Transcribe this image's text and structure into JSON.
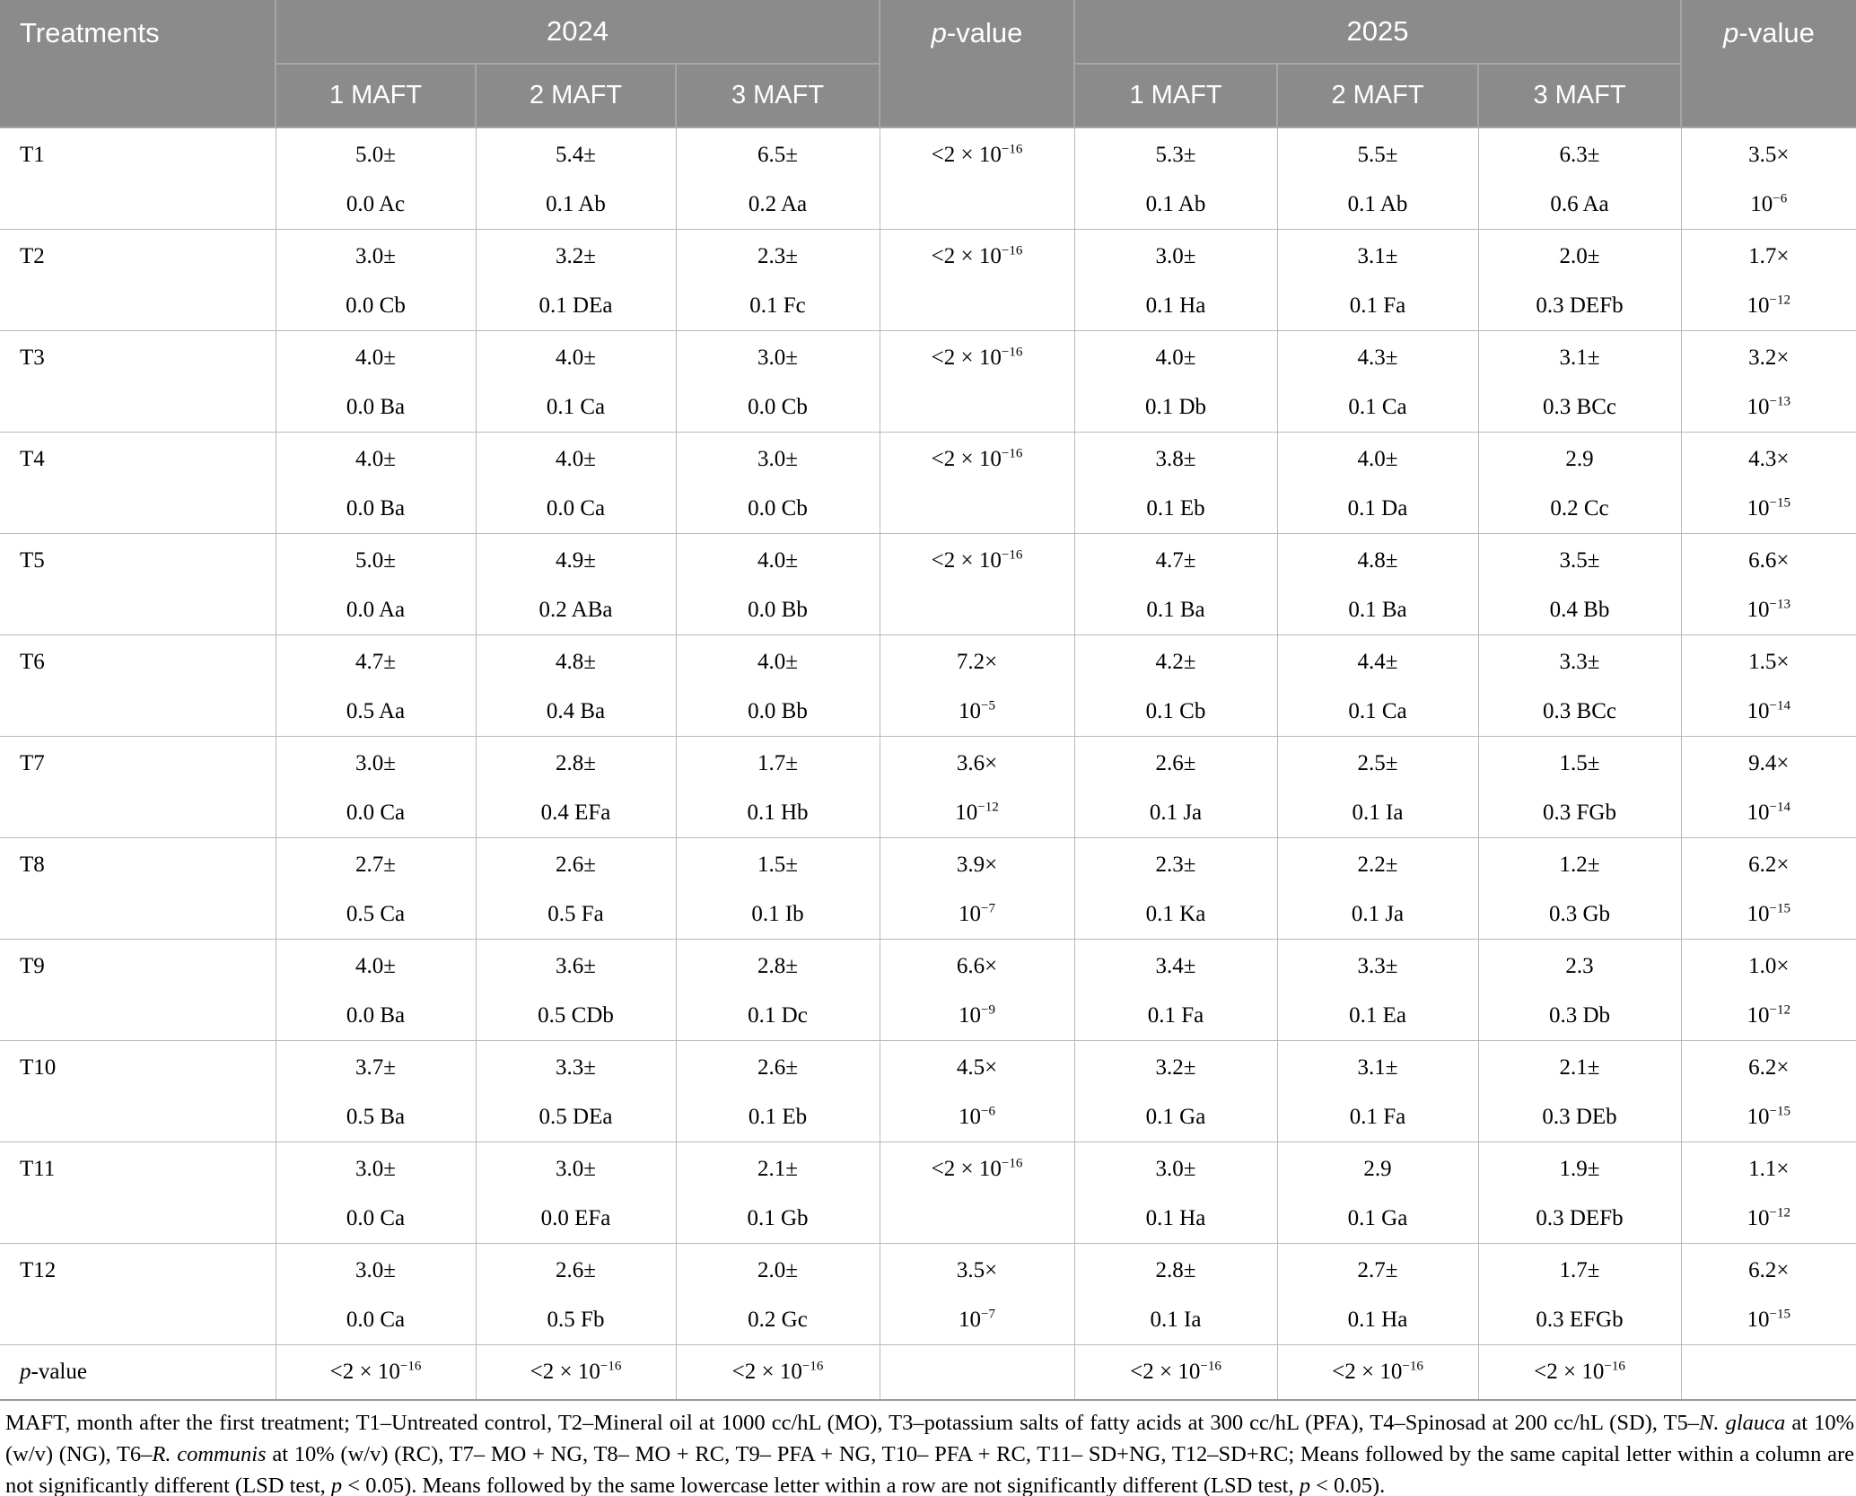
{
  "table": {
    "header": {
      "treatments": "Treatments",
      "year_2024": "2024",
      "year_2025": "2025",
      "pvalue_runs": [
        {
          "t": "p",
          "i": true
        },
        "-value"
      ],
      "maft": [
        "1 MAFT",
        "2 MAFT",
        "3 MAFT"
      ]
    },
    "rows": [
      {
        "label": "T1",
        "cells": [
          [
            [
              "5.0±"
            ],
            [
              "0.0 Ac"
            ]
          ],
          [
            [
              "5.4±"
            ],
            [
              "0.1 Ab"
            ]
          ],
          [
            [
              "6.5±"
            ],
            [
              "0.2 Aa"
            ]
          ],
          [
            [
              "<2 × 10",
              {
                "t": "−16",
                "sup": true
              }
            ]
          ],
          [
            [
              "5.3±"
            ],
            [
              "0.1 Ab"
            ]
          ],
          [
            [
              "5.5±"
            ],
            [
              "0.1 Ab"
            ]
          ],
          [
            [
              "6.3±"
            ],
            [
              "0.6 Aa"
            ]
          ],
          [
            [
              "3.5×"
            ],
            [
              "10",
              {
                "t": "−6",
                "sup": true
              }
            ]
          ]
        ]
      },
      {
        "label": "T2",
        "cells": [
          [
            [
              "3.0±"
            ],
            [
              "0.0 Cb"
            ]
          ],
          [
            [
              "3.2±"
            ],
            [
              "0.1 DEa"
            ]
          ],
          [
            [
              "2.3±"
            ],
            [
              "0.1 Fc"
            ]
          ],
          [
            [
              "<2 × 10",
              {
                "t": "−16",
                "sup": true
              }
            ]
          ],
          [
            [
              "3.0±"
            ],
            [
              "0.1 Ha"
            ]
          ],
          [
            [
              "3.1±"
            ],
            [
              "0.1 Fa"
            ]
          ],
          [
            [
              "2.0±"
            ],
            [
              "0.3 DEFb"
            ]
          ],
          [
            [
              "1.7×"
            ],
            [
              "10",
              {
                "t": "−12",
                "sup": true
              }
            ]
          ]
        ]
      },
      {
        "label": "T3",
        "cells": [
          [
            [
              "4.0±"
            ],
            [
              "0.0 Ba"
            ]
          ],
          [
            [
              "4.0±"
            ],
            [
              "0.1 Ca"
            ]
          ],
          [
            [
              "3.0±"
            ],
            [
              "0.0 Cb"
            ]
          ],
          [
            [
              "<2 × 10",
              {
                "t": "−16",
                "sup": true
              }
            ]
          ],
          [
            [
              "4.0±"
            ],
            [
              "0.1 Db"
            ]
          ],
          [
            [
              "4.3±"
            ],
            [
              "0.1 Ca"
            ]
          ],
          [
            [
              "3.1±"
            ],
            [
              "0.3 BCc"
            ]
          ],
          [
            [
              "3.2×"
            ],
            [
              "10",
              {
                "t": "−13",
                "sup": true
              }
            ]
          ]
        ]
      },
      {
        "label": "T4",
        "cells": [
          [
            [
              "4.0±"
            ],
            [
              "0.0 Ba"
            ]
          ],
          [
            [
              "4.0±"
            ],
            [
              "0.0 Ca"
            ]
          ],
          [
            [
              "3.0±"
            ],
            [
              "0.0 Cb"
            ]
          ],
          [
            [
              "<2 × 10",
              {
                "t": "−16",
                "sup": true
              }
            ]
          ],
          [
            [
              "3.8±"
            ],
            [
              "0.1 Eb"
            ]
          ],
          [
            [
              "4.0±"
            ],
            [
              "0.1 Da"
            ]
          ],
          [
            [
              "2.9"
            ],
            [
              "0.2 Cc"
            ]
          ],
          [
            [
              "4.3×"
            ],
            [
              "10",
              {
                "t": "−15",
                "sup": true
              }
            ]
          ]
        ]
      },
      {
        "label": "T5",
        "cells": [
          [
            [
              "5.0±"
            ],
            [
              "0.0 Aa"
            ]
          ],
          [
            [
              "4.9±"
            ],
            [
              "0.2 ABa"
            ]
          ],
          [
            [
              "4.0±"
            ],
            [
              "0.0 Bb"
            ]
          ],
          [
            [
              "<2 × 10",
              {
                "t": "−16",
                "sup": true
              }
            ]
          ],
          [
            [
              "4.7±"
            ],
            [
              "0.1 Ba"
            ]
          ],
          [
            [
              "4.8±"
            ],
            [
              "0.1 Ba"
            ]
          ],
          [
            [
              "3.5±"
            ],
            [
              "0.4 Bb"
            ]
          ],
          [
            [
              "6.6×"
            ],
            [
              "10",
              {
                "t": "−13",
                "sup": true
              }
            ]
          ]
        ]
      },
      {
        "label": "T6",
        "cells": [
          [
            [
              "4.7±"
            ],
            [
              "0.5 Aa"
            ]
          ],
          [
            [
              "4.8±"
            ],
            [
              "0.4 Ba"
            ]
          ],
          [
            [
              "4.0±"
            ],
            [
              "0.0 Bb"
            ]
          ],
          [
            [
              "7.2×"
            ],
            [
              "10",
              {
                "t": "−5",
                "sup": true
              }
            ]
          ],
          [
            [
              "4.2±"
            ],
            [
              "0.1 Cb"
            ]
          ],
          [
            [
              "4.4±"
            ],
            [
              "0.1 Ca"
            ]
          ],
          [
            [
              "3.3±"
            ],
            [
              "0.3 BCc"
            ]
          ],
          [
            [
              "1.5×"
            ],
            [
              "10",
              {
                "t": "−14",
                "sup": true
              }
            ]
          ]
        ]
      },
      {
        "label": "T7",
        "cells": [
          [
            [
              "3.0±"
            ],
            [
              "0.0 Ca"
            ]
          ],
          [
            [
              "2.8±"
            ],
            [
              "0.4 EFa"
            ]
          ],
          [
            [
              "1.7±"
            ],
            [
              "0.1 Hb"
            ]
          ],
          [
            [
              "3.6×"
            ],
            [
              "10",
              {
                "t": "−12",
                "sup": true
              }
            ]
          ],
          [
            [
              "2.6±"
            ],
            [
              "0.1 Ja"
            ]
          ],
          [
            [
              "2.5±"
            ],
            [
              "0.1 Ia"
            ]
          ],
          [
            [
              "1.5±"
            ],
            [
              "0.3 FGb"
            ]
          ],
          [
            [
              "9.4×"
            ],
            [
              "10",
              {
                "t": "−14",
                "sup": true
              }
            ]
          ]
        ]
      },
      {
        "label": "T8",
        "cells": [
          [
            [
              "2.7±"
            ],
            [
              "0.5 Ca"
            ]
          ],
          [
            [
              "2.6±"
            ],
            [
              "0.5 Fa"
            ]
          ],
          [
            [
              "1.5±"
            ],
            [
              "0.1 Ib"
            ]
          ],
          [
            [
              "3.9×"
            ],
            [
              "10",
              {
                "t": "−7",
                "sup": true
              }
            ]
          ],
          [
            [
              "2.3±"
            ],
            [
              "0.1 Ka"
            ]
          ],
          [
            [
              "2.2±"
            ],
            [
              "0.1 Ja"
            ]
          ],
          [
            [
              "1.2±"
            ],
            [
              "0.3 Gb"
            ]
          ],
          [
            [
              "6.2×"
            ],
            [
              "10",
              {
                "t": "−15",
                "sup": true
              }
            ]
          ]
        ]
      },
      {
        "label": "T9",
        "cells": [
          [
            [
              "4.0±"
            ],
            [
              "0.0 Ba"
            ]
          ],
          [
            [
              "3.6±"
            ],
            [
              "0.5 CDb"
            ]
          ],
          [
            [
              "2.8±"
            ],
            [
              "0.1 Dc"
            ]
          ],
          [
            [
              "6.6×"
            ],
            [
              "10",
              {
                "t": "−9",
                "sup": true
              }
            ]
          ],
          [
            [
              "3.4±"
            ],
            [
              "0.1 Fa"
            ]
          ],
          [
            [
              "3.3±"
            ],
            [
              "0.1 Ea"
            ]
          ],
          [
            [
              "2.3"
            ],
            [
              "0.3 Db"
            ]
          ],
          [
            [
              "1.0×"
            ],
            [
              "10",
              {
                "t": "−12",
                "sup": true
              }
            ]
          ]
        ]
      },
      {
        "label": "T10",
        "cells": [
          [
            [
              "3.7±"
            ],
            [
              "0.5 Ba"
            ]
          ],
          [
            [
              "3.3±"
            ],
            [
              "0.5 DEa"
            ]
          ],
          [
            [
              "2.6±"
            ],
            [
              "0.1 Eb"
            ]
          ],
          [
            [
              "4.5×"
            ],
            [
              "10",
              {
                "t": "−6",
                "sup": true
              }
            ]
          ],
          [
            [
              "3.2±"
            ],
            [
              "0.1 Ga"
            ]
          ],
          [
            [
              "3.1±"
            ],
            [
              "0.1 Fa"
            ]
          ],
          [
            [
              "2.1±"
            ],
            [
              "0.3 DEb"
            ]
          ],
          [
            [
              "6.2×"
            ],
            [
              "10",
              {
                "t": "−15",
                "sup": true
              }
            ]
          ]
        ]
      },
      {
        "label": "T11",
        "cells": [
          [
            [
              "3.0±"
            ],
            [
              "0.0 Ca"
            ]
          ],
          [
            [
              "3.0±"
            ],
            [
              "0.0 EFa"
            ]
          ],
          [
            [
              "2.1±"
            ],
            [
              "0.1 Gb"
            ]
          ],
          [
            [
              "<2 × 10",
              {
                "t": "−16",
                "sup": true
              }
            ]
          ],
          [
            [
              "3.0±"
            ],
            [
              "0.1 Ha"
            ]
          ],
          [
            [
              "2.9"
            ],
            [
              "0.1 Ga"
            ]
          ],
          [
            [
              "1.9±"
            ],
            [
              "0.3 DEFb"
            ]
          ],
          [
            [
              "1.1×"
            ],
            [
              "10",
              {
                "t": "−12",
                "sup": true
              }
            ]
          ]
        ]
      },
      {
        "label": "T12",
        "cells": [
          [
            [
              "3.0±"
            ],
            [
              "0.0 Ca"
            ]
          ],
          [
            [
              "2.6±"
            ],
            [
              "0.5 Fb"
            ]
          ],
          [
            [
              "2.0±"
            ],
            [
              "0.2 Gc"
            ]
          ],
          [
            [
              "3.5×"
            ],
            [
              "10",
              {
                "t": "−7",
                "sup": true
              }
            ]
          ],
          [
            [
              "2.8±"
            ],
            [
              "0.1 Ia"
            ]
          ],
          [
            [
              "2.7±"
            ],
            [
              "0.1 Ha"
            ]
          ],
          [
            [
              "1.7±"
            ],
            [
              "0.3 EFGb"
            ]
          ],
          [
            [
              "6.2×"
            ],
            [
              "10",
              {
                "t": "−15",
                "sup": true
              }
            ]
          ]
        ]
      }
    ],
    "pvalue_row": {
      "label_runs": [
        {
          "t": "p",
          "i": true
        },
        "-value"
      ],
      "cells": [
        [
          [
            "<2 × 10",
            {
              "t": "−16",
              "sup": true
            }
          ]
        ],
        [
          [
            "<2 × 10",
            {
              "t": "−16",
              "sup": true
            }
          ]
        ],
        [
          [
            "<2 × 10",
            {
              "t": "−16",
              "sup": true
            }
          ]
        ],
        [],
        [
          [
            "<2 × 10",
            {
              "t": "−16",
              "sup": true
            }
          ]
        ],
        [
          [
            "<2 × 10",
            {
              "t": "−16",
              "sup": true
            }
          ]
        ],
        [
          [
            "<2 × 10",
            {
              "t": "−16",
              "sup": true
            }
          ]
        ],
        []
      ]
    },
    "footnote_runs": [
      "MAFT, month after the first treatment; T1–Untreated control, T2–Mineral oil at 1000 cc/hL (MO), T3–potassium salts of fatty acids at 300 cc/hL (PFA), T4–Spinosad at 200 cc/hL (SD), T5–",
      {
        "t": "N. glauca",
        "i": true
      },
      " at 10% (w/v) (NG), T6–",
      {
        "t": "R. communis",
        "i": true
      },
      " at 10% (w/v) (RC), T7– MO + NG, T8– MO + RC, T9– PFA + NG, T10– PFA + RC, T11– SD+NG, T12–SD+RC; Means followed by the same capital letter within a column are not significantly different (LSD test, ",
      {
        "t": "p",
        "i": true
      },
      " < 0.05). Means followed by the same lowercase letter within a row are not significantly different (LSD test, ",
      {
        "t": "p",
        "i": true
      },
      " < 0.05)."
    ]
  },
  "colors": {
    "header_bg": "#8a8b8a",
    "header_text": "#ffffff",
    "header_separator": "#a5a7a5",
    "body_grid": "#b9b9b9",
    "table_bottom_border": "#989a98",
    "body_text": "#000000",
    "body_bg": "#ffffff"
  }
}
